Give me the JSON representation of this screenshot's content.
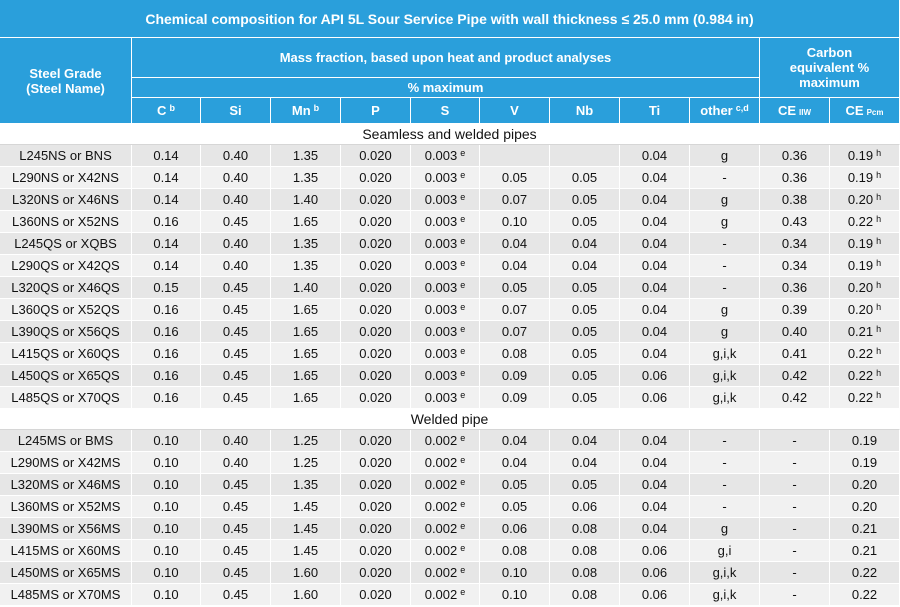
{
  "title": "Chemical composition for API 5L Sour Service Pipe with wall thickness ≤ 25.0 mm (0.984 in)",
  "header": {
    "grade": "Steel Grade (Steel Name)",
    "mass_fraction": "Mass fraction, based upon heat and product analyses",
    "percent_max": "% maximum",
    "carbon_equivalent": "Carbon equivalent % maximum",
    "columns": [
      {
        "label": "C",
        "note": "b"
      },
      {
        "label": "Si"
      },
      {
        "label": "Mn",
        "note": "b"
      },
      {
        "label": "P"
      },
      {
        "label": "S"
      },
      {
        "label": "V"
      },
      {
        "label": "Nb"
      },
      {
        "label": "Ti"
      },
      {
        "label": "other",
        "note": "c,d"
      },
      {
        "label": "CE",
        "sub": "IIW"
      },
      {
        "label": "CE",
        "sub": "Pcm"
      }
    ]
  },
  "sections": [
    {
      "title": "Seamless and welded pipes",
      "rows": [
        {
          "grade": "L245NS or BNS",
          "cells": [
            "0.14",
            "0.40",
            "1.35",
            "0.020",
            {
              "value": "0.003",
              "note": "e"
            },
            null,
            null,
            "0.04",
            "g",
            "0.36",
            {
              "value": "0.19",
              "note": "h"
            }
          ]
        },
        {
          "grade": "L290NS or X42NS",
          "cells": [
            "0.14",
            "0.40",
            "1.35",
            "0.020",
            {
              "value": "0.003",
              "note": "e"
            },
            "0.05",
            "0.05",
            "0.04",
            "-",
            "0.36",
            {
              "value": "0.19",
              "note": "h"
            }
          ]
        },
        {
          "grade": "L320NS or X46NS",
          "cells": [
            "0.14",
            "0.40",
            "1.40",
            "0.020",
            {
              "value": "0.003",
              "note": "e"
            },
            "0.07",
            "0.05",
            "0.04",
            "g",
            "0.38",
            {
              "value": "0.20",
              "note": "h"
            }
          ]
        },
        {
          "grade": "L360NS or X52NS",
          "cells": [
            "0.16",
            "0.45",
            "1.65",
            "0.020",
            {
              "value": "0.003",
              "note": "e"
            },
            "0.10",
            "0.05",
            "0.04",
            "g",
            "0.43",
            {
              "value": "0.22",
              "note": "h"
            }
          ]
        },
        {
          "grade": "L245QS or XQBS",
          "cells": [
            "0.14",
            "0.40",
            "1.35",
            "0.020",
            {
              "value": "0.003",
              "note": "e"
            },
            "0.04",
            "0.04",
            "0.04",
            "-",
            "0.34",
            {
              "value": "0.19",
              "note": "h"
            }
          ]
        },
        {
          "grade": "L290QS or X42QS",
          "cells": [
            "0.14",
            "0.40",
            "1.35",
            "0.020",
            {
              "value": "0.003",
              "note": "e"
            },
            "0.04",
            "0.04",
            "0.04",
            "-",
            "0.34",
            {
              "value": "0.19",
              "note": "h"
            }
          ]
        },
        {
          "grade": "L320QS or X46QS",
          "cells": [
            "0.15",
            "0.45",
            "1.40",
            "0.020",
            {
              "value": "0.003",
              "note": "e"
            },
            "0.05",
            "0.05",
            "0.04",
            "-",
            "0.36",
            {
              "value": "0.20",
              "note": "h"
            }
          ]
        },
        {
          "grade": "L360QS or X52QS",
          "cells": [
            "0.16",
            "0.45",
            "1.65",
            "0.020",
            {
              "value": "0.003",
              "note": "e"
            },
            "0.07",
            "0.05",
            "0.04",
            "g",
            "0.39",
            {
              "value": "0.20",
              "note": "h"
            }
          ]
        },
        {
          "grade": "L390QS or X56QS",
          "cells": [
            "0.16",
            "0.45",
            "1.65",
            "0.020",
            {
              "value": "0.003",
              "note": "e"
            },
            "0.07",
            "0.05",
            "0.04",
            "g",
            "0.40",
            {
              "value": "0.21",
              "note": "h"
            }
          ]
        },
        {
          "grade": "L415QS or X60QS",
          "cells": [
            "0.16",
            "0.45",
            "1.65",
            "0.020",
            {
              "value": "0.003",
              "note": "e"
            },
            "0.08",
            "0.05",
            "0.04",
            "g,i,k",
            "0.41",
            {
              "value": "0.22",
              "note": "h"
            }
          ]
        },
        {
          "grade": "L450QS or X65QS",
          "cells": [
            "0.16",
            "0.45",
            "1.65",
            "0.020",
            {
              "value": "0.003",
              "note": "e"
            },
            "0.09",
            "0.05",
            "0.06",
            "g,i,k",
            "0.42",
            {
              "value": "0.22",
              "note": "h"
            }
          ]
        },
        {
          "grade": "L485QS or X70QS",
          "cells": [
            "0.16",
            "0.45",
            "1.65",
            "0.020",
            {
              "value": "0.003",
              "note": "e"
            },
            "0.09",
            "0.05",
            "0.06",
            "g,i,k",
            "0.42",
            {
              "value": "0.22",
              "note": "h"
            }
          ]
        }
      ]
    },
    {
      "title": "Welded pipe",
      "rows": [
        {
          "grade": "L245MS or BMS",
          "cells": [
            "0.10",
            "0.40",
            "1.25",
            "0.020",
            {
              "value": "0.002",
              "note": "e"
            },
            "0.04",
            "0.04",
            "0.04",
            "-",
            "-",
            "0.19"
          ]
        },
        {
          "grade": "L290MS or X42MS",
          "cells": [
            "0.10",
            "0.40",
            "1.25",
            "0.020",
            {
              "value": "0.002",
              "note": "e"
            },
            "0.04",
            "0.04",
            "0.04",
            "-",
            "-",
            "0.19"
          ]
        },
        {
          "grade": "L320MS or X46MS",
          "cells": [
            "0.10",
            "0.45",
            "1.35",
            "0.020",
            {
              "value": "0.002",
              "note": "e"
            },
            "0.05",
            "0.05",
            "0.04",
            "-",
            "-",
            "0.20"
          ]
        },
        {
          "grade": "L360MS or X52MS",
          "cells": [
            "0.10",
            "0.45",
            "1.45",
            "0.020",
            {
              "value": "0.002",
              "note": "e"
            },
            "0.05",
            "0.06",
            "0.04",
            "-",
            "-",
            "0.20"
          ]
        },
        {
          "grade": "L390MS or X56MS",
          "cells": [
            "0.10",
            "0.45",
            "1.45",
            "0.020",
            {
              "value": "0.002",
              "note": "e"
            },
            "0.06",
            "0.08",
            "0.04",
            "g",
            "-",
            "0.21"
          ]
        },
        {
          "grade": "L415MS or X60MS",
          "cells": [
            "0.10",
            "0.45",
            "1.45",
            "0.020",
            {
              "value": "0.002",
              "note": "e"
            },
            "0.08",
            "0.08",
            "0.06",
            "g,i",
            "-",
            "0.21"
          ]
        },
        {
          "grade": "L450MS or X65MS",
          "cells": [
            "0.10",
            "0.45",
            "1.60",
            "0.020",
            {
              "value": "0.002",
              "note": "e"
            },
            "0.10",
            "0.08",
            "0.06",
            "g,i,k",
            "-",
            "0.22"
          ]
        },
        {
          "grade": "L485MS or X70MS",
          "cells": [
            "0.10",
            "0.45",
            "1.60",
            "0.020",
            {
              "value": "0.002",
              "note": "e"
            },
            "0.10",
            "0.08",
            "0.06",
            "g,i,k",
            "-",
            "0.22"
          ]
        }
      ]
    }
  ]
}
